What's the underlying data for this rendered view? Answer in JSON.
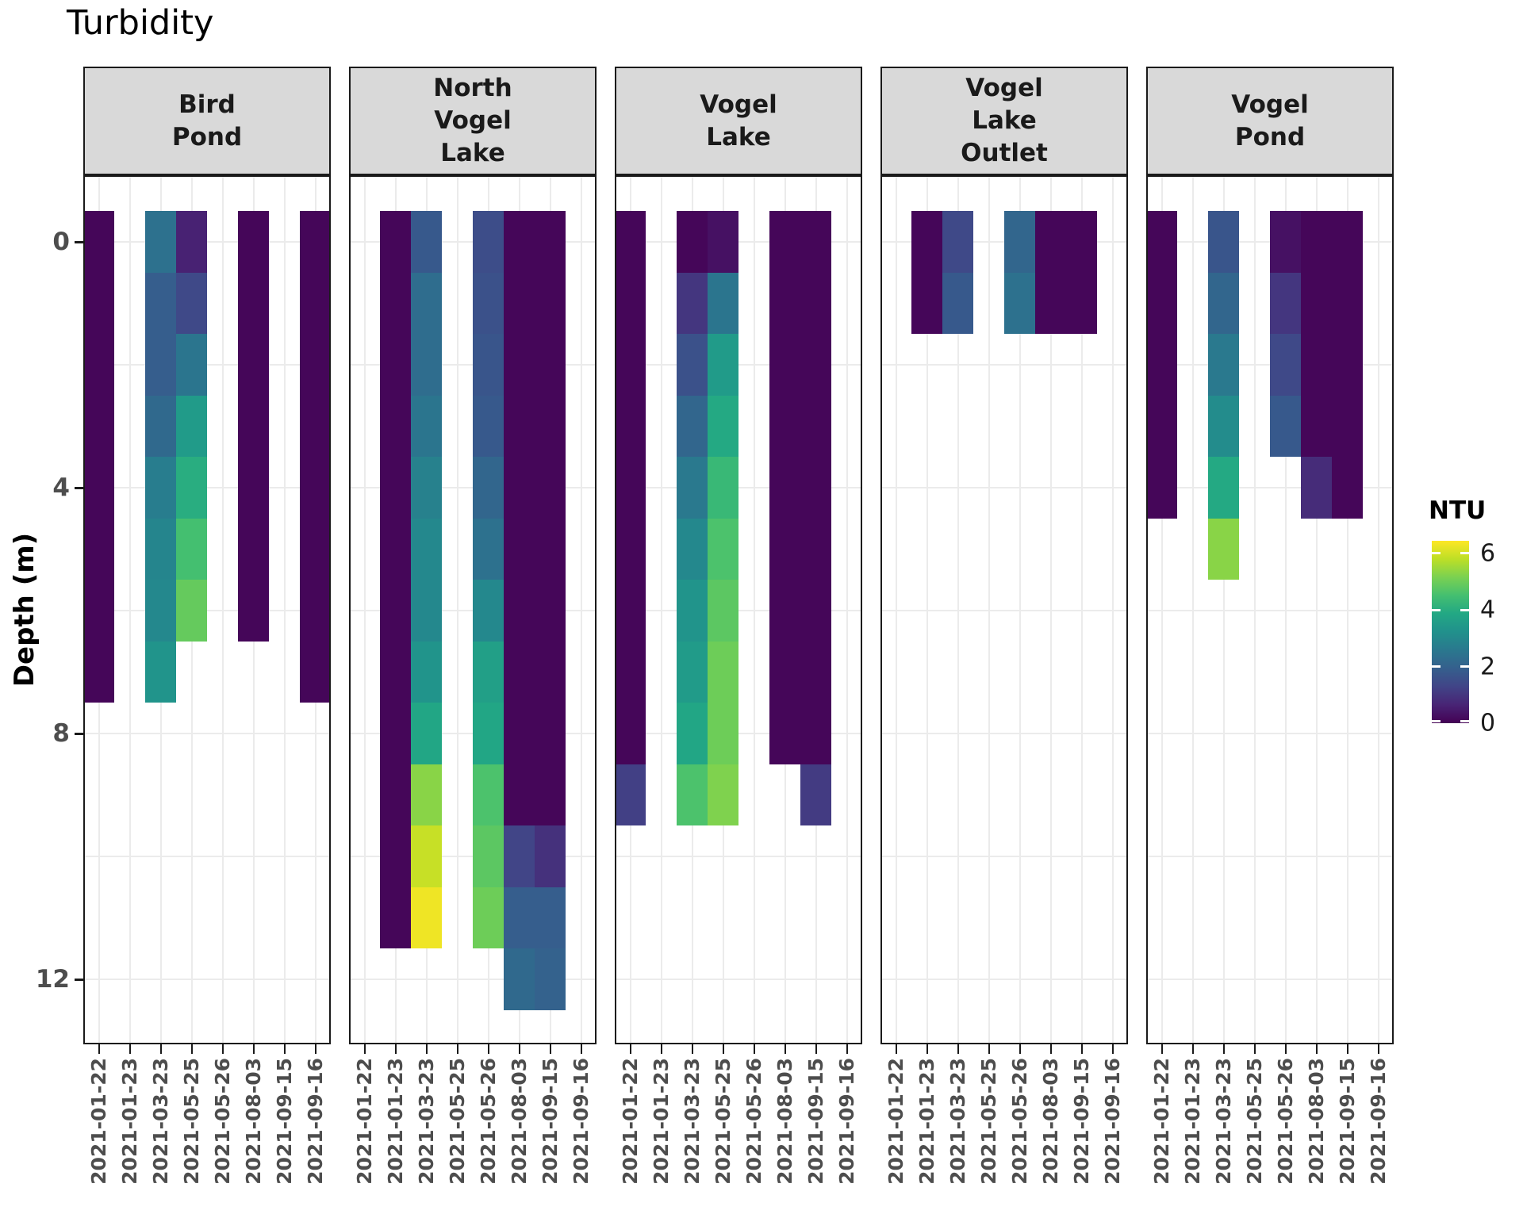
{
  "chart_data": {
    "type": "heatmap",
    "title": "Turbidity",
    "y_axis": {
      "label": "Depth (m)",
      "ticks": [
        0,
        4,
        8,
        12
      ]
    },
    "x_dates": [
      "2021-01-22",
      "2021-01-23",
      "2021-03-23",
      "2021-05-25",
      "2021-05-26",
      "2021-08-03",
      "2021-09-15",
      "2021-09-16"
    ],
    "legend": {
      "title": "NTU",
      "ticks": [
        0,
        2,
        4,
        6
      ],
      "domain": [
        0,
        6.44
      ],
      "colormap": "viridis",
      "position": "right"
    },
    "grid": {
      "horizontal_depths": [
        0,
        2,
        4,
        6,
        8,
        10,
        12
      ],
      "vertical": "every-date"
    },
    "colors": {
      "strip_bg": "#d9d9d9",
      "panel_border": "#1a1a1a",
      "gridline": "#ebebeb",
      "tick_label": "#4d4d4d",
      "viridis_stops": [
        "#440154",
        "#482475",
        "#414487",
        "#355f8d",
        "#2a788e",
        "#21918c",
        "#22a884",
        "#44bf70",
        "#7ad151",
        "#bddf26",
        "#fde725"
      ]
    },
    "facets": [
      {
        "site": "Bird Pond",
        "label_lines": [
          "Bird",
          "Pond"
        ],
        "columns": [
          {
            "date": "2021-01-22",
            "top_depth": 0,
            "ntu": [
              0.1,
              0.1,
              0.1,
              0.1,
              0.1,
              0.1,
              0.1,
              0.1
            ]
          },
          {
            "date": "2021-03-23",
            "top_depth": 0,
            "ntu": [
              2.4,
              1.9,
              1.9,
              2.2,
              2.7,
              2.9,
              3.0,
              3.3
            ]
          },
          {
            "date": "2021-05-25",
            "top_depth": 0,
            "ntu": [
              0.6,
              1.4,
              2.5,
              3.5,
              4.0,
              4.5,
              4.9
            ]
          },
          {
            "date": "2021-08-03",
            "top_depth": 0,
            "ntu": [
              0.1,
              0.1,
              0.1,
              0.1,
              0.1,
              0.1,
              0.1
            ]
          },
          {
            "date": "2021-09-16",
            "top_depth": 0,
            "ntu": [
              0.1,
              0.1,
              0.1,
              0.1,
              0.1,
              0.1,
              0.1,
              0.1
            ]
          }
        ]
      },
      {
        "site": "North Vogel Lake",
        "label_lines": [
          "North",
          "Vogel",
          "Lake"
        ],
        "columns": [
          {
            "date": "2021-01-23",
            "top_depth": 0,
            "ntu": [
              0.1,
              0.1,
              0.1,
              0.1,
              0.1,
              0.1,
              0.1,
              0.1,
              0.1,
              0.1,
              0.1,
              0.1
            ]
          },
          {
            "date": "2021-03-23",
            "top_depth": 0,
            "ntu": [
              1.8,
              2.3,
              2.3,
              2.5,
              2.8,
              3.0,
              3.0,
              3.3,
              3.8,
              5.3,
              5.9,
              6.3
            ]
          },
          {
            "date": "2021-05-26",
            "top_depth": 0,
            "ntu": [
              1.5,
              1.6,
              1.7,
              1.8,
              2.1,
              2.4,
              3.0,
              3.6,
              3.8,
              4.6,
              4.8,
              5.0
            ]
          },
          {
            "date": "2021-08-03",
            "top_depth": 0,
            "ntu": [
              0.1,
              0.1,
              0.1,
              0.1,
              0.1,
              0.1,
              0.1,
              0.1,
              0.1,
              0.1,
              1.3,
              1.9,
              2.2
            ]
          },
          {
            "date": "2021-09-15",
            "top_depth": 0,
            "ntu": [
              0.1,
              0.1,
              0.1,
              0.1,
              0.1,
              0.1,
              0.1,
              0.1,
              0.1,
              0.1,
              0.9,
              1.9,
              2.0
            ]
          }
        ]
      },
      {
        "site": "Vogel Lake",
        "label_lines": [
          "Vogel",
          "Lake"
        ],
        "columns": [
          {
            "date": "2021-01-22",
            "top_depth": 0,
            "ntu": [
              0.1,
              0.1,
              0.1,
              0.1,
              0.1,
              0.1,
              0.1,
              0.1,
              0.1,
              1.2
            ]
          },
          {
            "date": "2021-03-23",
            "top_depth": 0,
            "ntu": [
              0.1,
              1.0,
              1.6,
              2.1,
              2.6,
              3.0,
              3.3,
              3.5,
              3.8,
              4.6
            ]
          },
          {
            "date": "2021-05-25",
            "top_depth": 0,
            "ntu": [
              0.3,
              2.5,
              3.5,
              3.9,
              4.3,
              4.6,
              4.8,
              5.0,
              5.0,
              5.2
            ]
          },
          {
            "date": "2021-08-03",
            "top_depth": 0,
            "ntu": [
              0.1,
              0.1,
              0.1,
              0.1,
              0.1,
              0.1,
              0.1,
              0.1,
              0.1
            ]
          },
          {
            "date": "2021-09-15",
            "top_depth": 0,
            "ntu": [
              0.1,
              0.1,
              0.1,
              0.1,
              0.1,
              0.1,
              0.1,
              0.1,
              0.1,
              1.1
            ]
          }
        ]
      },
      {
        "site": "Vogel Lake Outlet",
        "label_lines": [
          "Vogel",
          "Lake",
          "Outlet"
        ],
        "columns": [
          {
            "date": "2021-01-23",
            "top_depth": 0,
            "ntu": [
              0.1,
              0.1
            ]
          },
          {
            "date": "2021-03-23",
            "top_depth": 0,
            "ntu": [
              1.4,
              1.8
            ]
          },
          {
            "date": "2021-05-26",
            "top_depth": 0,
            "ntu": [
              2.1,
              2.4
            ]
          },
          {
            "date": "2021-08-03",
            "top_depth": 0,
            "ntu": [
              0.1,
              0.1
            ]
          },
          {
            "date": "2021-09-15",
            "top_depth": 0,
            "ntu": [
              0.1,
              0.1
            ]
          }
        ]
      },
      {
        "site": "Vogel Pond",
        "label_lines": [
          "Vogel",
          "Pond"
        ],
        "columns": [
          {
            "date": "2021-01-22",
            "top_depth": 0,
            "ntu": [
              0.1,
              0.1,
              0.1,
              0.1,
              0.1
            ]
          },
          {
            "date": "2021-03-23",
            "top_depth": 0,
            "ntu": [
              1.7,
              2.1,
              2.6,
              3.1,
              3.9,
              5.3
            ]
          },
          {
            "date": "2021-05-26",
            "top_depth": 0,
            "ntu": [
              0.3,
              1.0,
              1.4,
              1.8
            ]
          },
          {
            "date": "2021-08-03",
            "top_depth": 0,
            "ntu": [
              0.1,
              0.1,
              0.1,
              0.1,
              0.8
            ]
          },
          {
            "date": "2021-09-15",
            "top_depth": 0,
            "ntu": [
              0.1,
              0.1,
              0.1,
              0.1,
              0.1
            ]
          }
        ]
      }
    ]
  }
}
